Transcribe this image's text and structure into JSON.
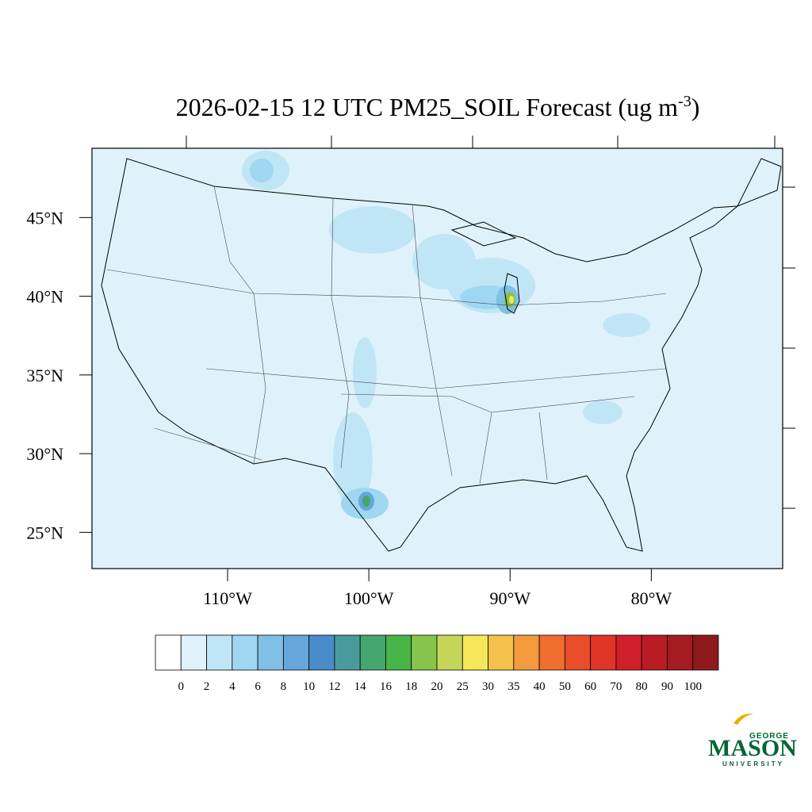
{
  "map": {
    "title": "2026-02-15 12 UTC PM25_SOIL Forecast (ug m",
    "title_superscript": "-3",
    "title_end": ")",
    "lat_lim": [
      22.7,
      49.4
    ],
    "lat_ticks": [
      {
        "value": 45,
        "label": "45°N"
      },
      {
        "value": 40,
        "label": "40°N"
      },
      {
        "value": 35,
        "label": "35°N"
      },
      {
        "value": 30,
        "label": "30°N"
      },
      {
        "value": 25,
        "label": "25°N"
      }
    ],
    "lon_lim": [
      -119.6,
      -70.7
    ],
    "lon_ticks": [
      {
        "value": -110,
        "label": "110°W"
      },
      {
        "value": -100,
        "label": "100°W"
      },
      {
        "value": -90,
        "label": "90°W"
      },
      {
        "value": -80,
        "label": "80°W"
      }
    ],
    "colorbar": {
      "levels": [
        0,
        2,
        4,
        6,
        8,
        10,
        12,
        14,
        16,
        18,
        20,
        25,
        30,
        35,
        40,
        50,
        60,
        70,
        80,
        90,
        100
      ],
      "colors": [
        "#ffffff",
        "#dff2fb",
        "#c0e6f6",
        "#9fd7f3",
        "#80bfe6",
        "#66a6db",
        "#4a8cca",
        "#4a9a9c",
        "#45a670",
        "#47b448",
        "#86c44c",
        "#c3d657",
        "#f6e659",
        "#f6c14a",
        "#f39a3c",
        "#ef6d2e",
        "#e84e2b",
        "#e03427",
        "#d01f2a",
        "#b91c25",
        "#a61b21",
        "#8e1a1c"
      ]
    },
    "logo": {
      "top": "GEORGE",
      "main": "MASON",
      "bottom": "UNIVERSITY"
    }
  }
}
